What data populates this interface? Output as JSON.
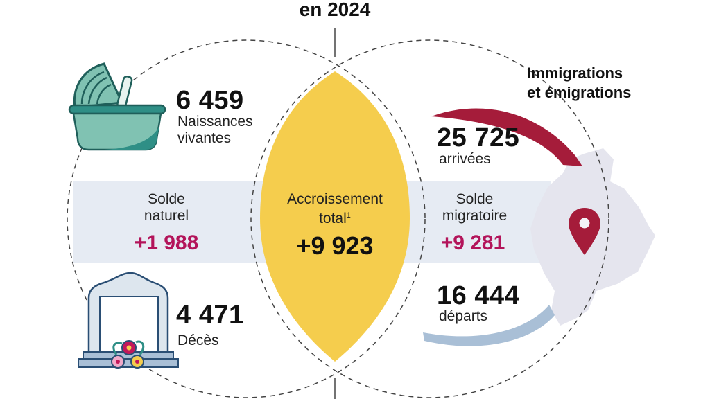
{
  "title": "en 2024",
  "births": {
    "value": "6 459",
    "label_line1": "Naissances",
    "label_line2": "vivantes"
  },
  "deaths": {
    "value": "4 471",
    "label": "Décès"
  },
  "natural_balance": {
    "label_line1": "Solde",
    "label_line2": "naturel",
    "value": "+1 988"
  },
  "total_growth": {
    "label_line1": "Accroissement",
    "label_line2": "total",
    "footnote": "1",
    "value": "+9 923"
  },
  "migration_balance": {
    "label_line1": "Solde",
    "label_line2": "migratoire",
    "value": "+9 281"
  },
  "migrations": {
    "heading_line1": "Immigrations",
    "heading_line2": "et émigrations"
  },
  "arrivals": {
    "value": "25 725",
    "label": "arrivées"
  },
  "departures": {
    "value": "16 444",
    "label": "départs"
  },
  "colors": {
    "band": "#e6ebf3",
    "lens": "#f5cd4d",
    "accent": "#b3145a",
    "arrow_in": "#a51c3a",
    "arrow_out": "#a9bfd6",
    "map": "#e5e5ee"
  }
}
